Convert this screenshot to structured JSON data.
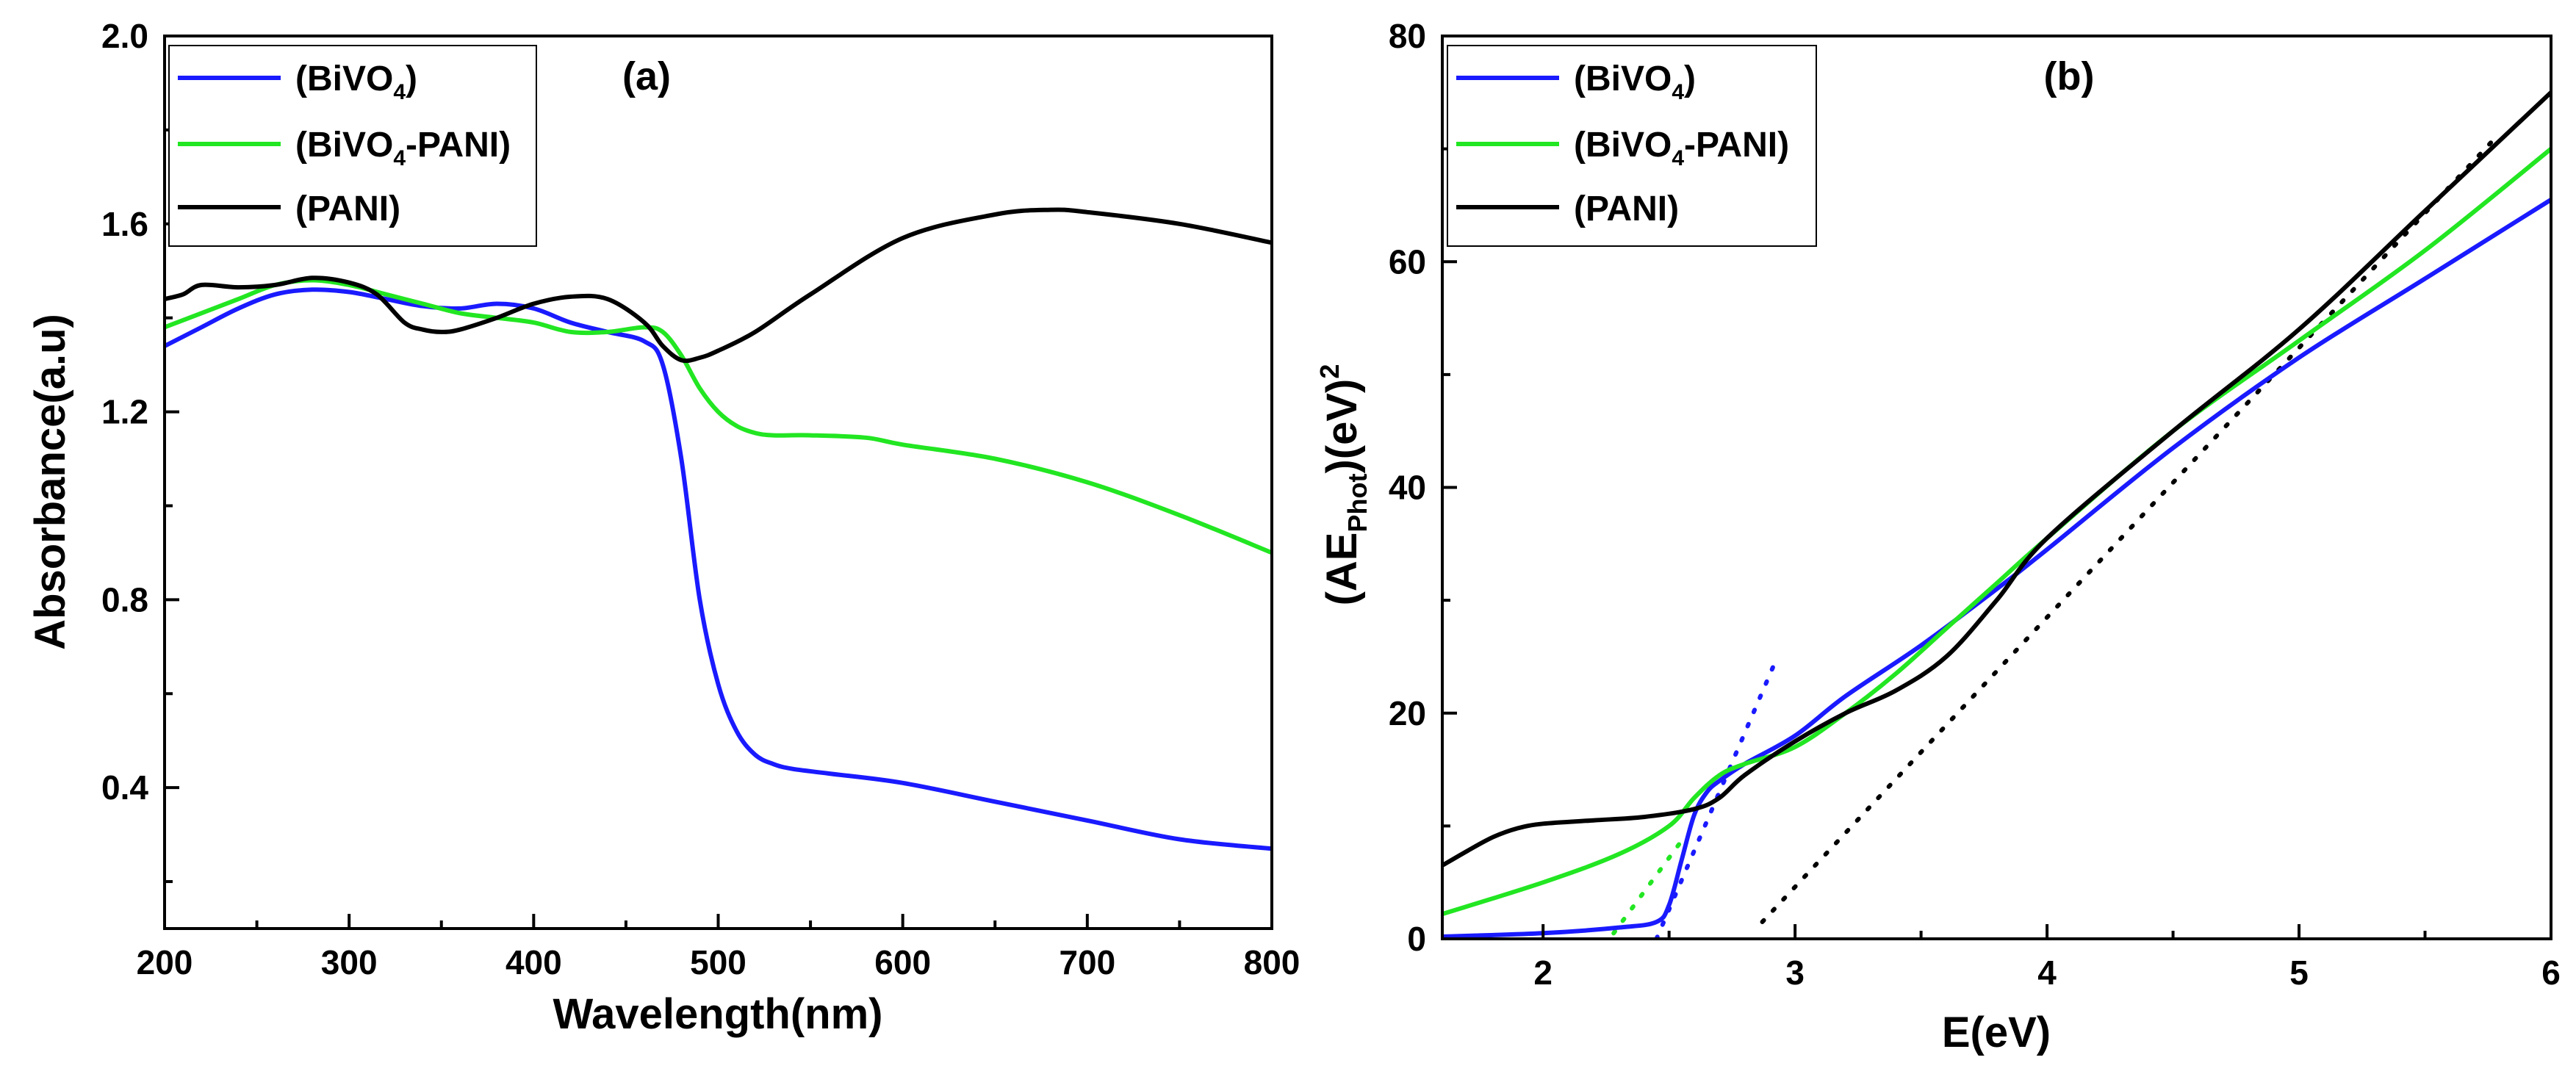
{
  "colors": {
    "blue": "#1a1aff",
    "green": "#22e622",
    "black": "#000000"
  },
  "chart_data": [
    {
      "type": "line",
      "panel_label": "(a)",
      "xlabel": "Wavelength(nm)",
      "ylabel": "Absorbance(a.u)",
      "xlim": [
        200,
        800
      ],
      "ylim": [
        0.1,
        2.0
      ],
      "x_ticks": [
        "200",
        "300",
        "400",
        "500",
        "600",
        "700",
        "800"
      ],
      "y_ticks": [
        "0.4",
        "0.8",
        "1.2",
        "1.6",
        "2.0"
      ],
      "legend": {
        "location": "top-left",
        "entries": [
          "(BiVO4)",
          "(BiVO4-PANI)",
          "(PANI)"
        ]
      },
      "series": [
        {
          "name": "(BiVO4)",
          "color": "blue",
          "x": [
            200,
            220,
            240,
            260,
            280,
            300,
            320,
            340,
            360,
            380,
            400,
            420,
            440,
            460,
            470,
            480,
            490,
            500,
            510,
            520,
            530,
            540,
            560,
            600,
            650,
            700,
            750,
            800
          ],
          "y": [
            1.34,
            1.38,
            1.42,
            1.45,
            1.46,
            1.455,
            1.44,
            1.425,
            1.42,
            1.43,
            1.42,
            1.39,
            1.37,
            1.35,
            1.3,
            1.1,
            0.8,
            0.62,
            0.52,
            0.47,
            0.45,
            0.44,
            0.43,
            0.41,
            0.37,
            0.33,
            0.29,
            0.27
          ]
        },
        {
          "name": "(BiVO4-PANI)",
          "color": "green",
          "x": [
            200,
            220,
            240,
            260,
            280,
            300,
            320,
            340,
            360,
            380,
            400,
            420,
            440,
            460,
            470,
            480,
            490,
            500,
            510,
            520,
            530,
            550,
            580,
            600,
            650,
            700,
            750,
            800
          ],
          "y": [
            1.38,
            1.41,
            1.44,
            1.47,
            1.48,
            1.47,
            1.45,
            1.43,
            1.41,
            1.4,
            1.39,
            1.37,
            1.37,
            1.38,
            1.37,
            1.32,
            1.25,
            1.2,
            1.17,
            1.155,
            1.15,
            1.15,
            1.145,
            1.13,
            1.1,
            1.05,
            0.98,
            0.9
          ]
        },
        {
          "name": "(PANI)",
          "color": "black",
          "x": [
            200,
            210,
            220,
            240,
            260,
            280,
            300,
            315,
            330,
            340,
            350,
            360,
            380,
            400,
            420,
            440,
            460,
            470,
            480,
            490,
            500,
            520,
            550,
            600,
            650,
            680,
            700,
            750,
            800
          ],
          "y": [
            1.44,
            1.45,
            1.47,
            1.465,
            1.47,
            1.485,
            1.475,
            1.45,
            1.39,
            1.375,
            1.37,
            1.375,
            1.4,
            1.43,
            1.445,
            1.44,
            1.39,
            1.34,
            1.31,
            1.315,
            1.33,
            1.37,
            1.45,
            1.57,
            1.62,
            1.63,
            1.625,
            1.6,
            1.56
          ]
        }
      ]
    },
    {
      "type": "line",
      "panel_label": "(b)",
      "xlabel": "E(eV)",
      "ylabel": {
        "main": "(AE",
        "sub": "Phot",
        "mid": ")(eV)",
        "sup": "2"
      },
      "xlim": [
        1.6,
        6.0
      ],
      "ylim": [
        0,
        80
      ],
      "x_ticks": [
        "2",
        "3",
        "4",
        "5",
        "6"
      ],
      "y_ticks": [
        "0",
        "20",
        "40",
        "60",
        "80"
      ],
      "legend": {
        "location": "top-left",
        "entries": [
          "(BiVO4)",
          "(BiVO4-PANI)",
          "(PANI)"
        ]
      },
      "series": [
        {
          "name": "(BiVO4)",
          "color": "blue",
          "x": [
            1.6,
            2.0,
            2.3,
            2.45,
            2.5,
            2.55,
            2.6,
            2.65,
            2.7,
            2.8,
            3.0,
            3.2,
            3.5,
            3.8,
            4.0,
            4.5,
            5.0,
            5.5,
            6.0
          ],
          "y": [
            0.2,
            0.5,
            1.0,
            1.5,
            3,
            7,
            11,
            13,
            14,
            15.5,
            18,
            21.5,
            26,
            31,
            34.5,
            43.5,
            51.5,
            58.5,
            65.5
          ]
        },
        {
          "name": "(BiVO4-PANI)",
          "color": "green",
          "x": [
            1.6,
            2.0,
            2.3,
            2.5,
            2.6,
            2.7,
            2.8,
            3.0,
            3.2,
            3.4,
            3.6,
            3.8,
            4.0,
            4.5,
            5.0,
            5.5,
            6.0
          ],
          "y": [
            2.2,
            5,
            7.5,
            10,
            12.5,
            14.5,
            15.5,
            17,
            20,
            23.5,
            27.5,
            31.5,
            35.5,
            45,
            53,
            61,
            70
          ]
        },
        {
          "name": "(PANI)",
          "color": "black",
          "x": [
            1.6,
            1.7,
            1.8,
            1.9,
            2.0,
            2.2,
            2.4,
            2.6,
            2.7,
            2.8,
            3.0,
            3.2,
            3.4,
            3.6,
            3.8,
            4.0,
            4.5,
            5.0,
            5.5,
            6.0
          ],
          "y": [
            6.5,
            7.8,
            9,
            9.8,
            10.2,
            10.5,
            10.8,
            11.5,
            12.5,
            14.5,
            17.5,
            20,
            22,
            25,
            30,
            35.5,
            45,
            54,
            64.5,
            75
          ]
        }
      ],
      "fit_lines": [
        {
          "color": "blue",
          "x": [
            2.45,
            2.93
          ],
          "y": [
            0,
            25
          ]
        },
        {
          "color": "green",
          "x": [
            2.28,
            2.56
          ],
          "y": [
            0.5,
            9
          ]
        },
        {
          "color": "black",
          "x": [
            2.87,
            5.78
          ],
          "y": [
            1.5,
            71
          ]
        }
      ]
    }
  ]
}
